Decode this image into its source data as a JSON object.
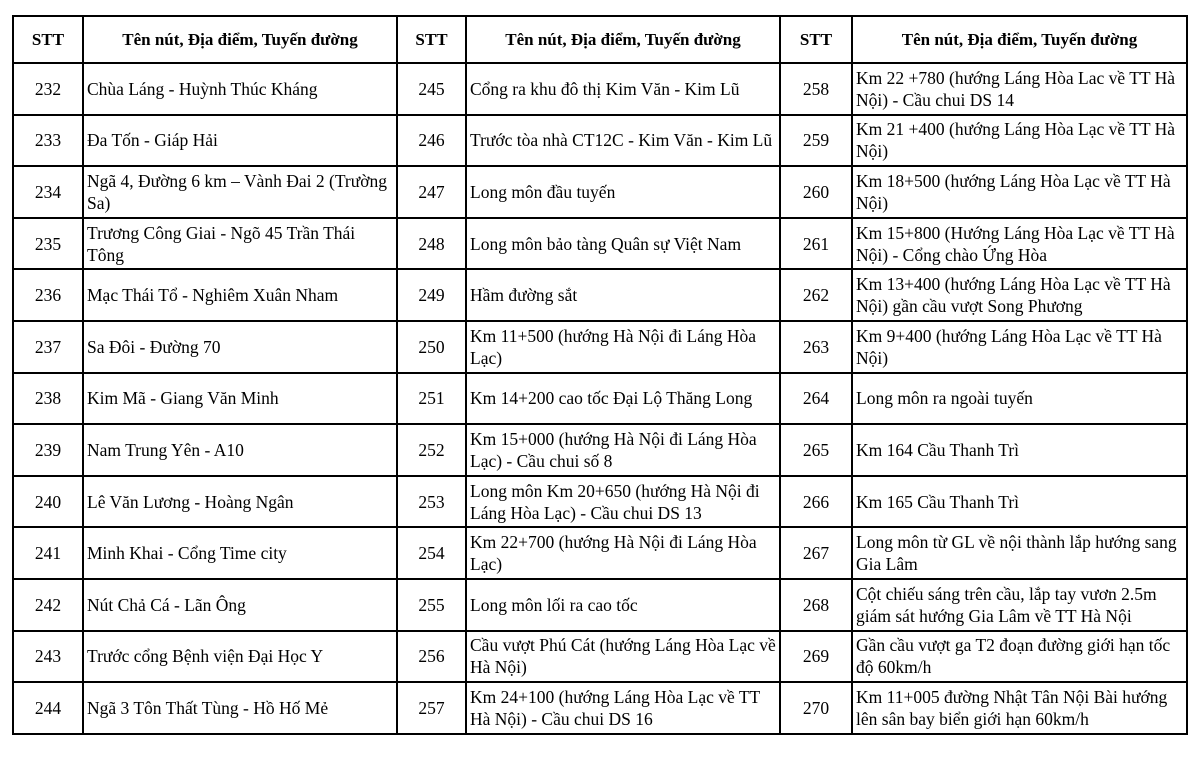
{
  "header": {
    "stt": "STT",
    "name": "Tên nút, Địa điểm, Tuyến đường"
  },
  "rows": [
    [
      [
        "232",
        "Chùa Láng - Huỳnh Thúc Kháng"
      ],
      [
        "245",
        "Cổng ra khu đô thị Kim Văn - Kim Lũ"
      ],
      [
        "258",
        "Km  22 +780  (hướng Láng Hòa Lac về TT Hà Nội) - Cầu chui DS 14"
      ]
    ],
    [
      [
        "233",
        "Đa Tốn - Giáp Hải"
      ],
      [
        "246",
        "Trước tòa nhà CT12C - Kim Văn - Kim Lũ"
      ],
      [
        "259",
        "Km 21 +400 (hướng Láng Hòa Lạc về TT Hà Nội)"
      ]
    ],
    [
      [
        "234",
        " Ngã 4, Đường 6 km – Vành Đai 2 (Trường Sa)"
      ],
      [
        "247",
        "Long môn đầu tuyến"
      ],
      [
        "260",
        "Km 18+500 (hướng Láng Hòa Lạc về TT Hà Nội)"
      ]
    ],
    [
      [
        "235",
        "Trương Công Giai - Ngõ 45 Trần Thái Tông"
      ],
      [
        "248",
        "Long môn bảo tàng Quân sự Việt Nam"
      ],
      [
        "261",
        "Km 15+800 (Hướng Láng Hòa Lạc về TT Hà Nội) - Cổng chào Ứng Hòa"
      ]
    ],
    [
      [
        "236",
        "Mạc Thái Tổ - Nghiêm Xuân Nham"
      ],
      [
        "249",
        "Hầm đường sắt"
      ],
      [
        "262",
        "Km 13+400 (hướng Láng Hòa Lạc về TT Hà Nội) gần cầu vượt Song Phương"
      ]
    ],
    [
      [
        "237",
        "Sa Đôi - Đường 70"
      ],
      [
        "250",
        "Km 11+500 (hướng Hà Nội đi Láng Hòa Lạc)"
      ],
      [
        "263",
        "Km 9+400 (hướng Láng Hòa Lạc về TT Hà Nội)"
      ]
    ],
    [
      [
        "238",
        "Kim Mã - Giang Văn Minh"
      ],
      [
        "251",
        "Km 14+200 cao tốc Đại Lộ Thăng Long"
      ],
      [
        "264",
        "Long môn ra ngoài tuyến"
      ]
    ],
    [
      [
        "239",
        "Nam Trung Yên - A10"
      ],
      [
        "252",
        "Km 15+000 (hướng Hà Nội đi Láng Hòa Lạc) - Cầu chui số 8"
      ],
      [
        "265",
        "Km 164 Cầu Thanh Trì"
      ]
    ],
    [
      [
        "240",
        "Lê Văn Lương - Hoàng Ngân"
      ],
      [
        "253",
        "Long môn Km 20+650  (hướng Hà Nội đi Láng Hòa Lạc) - Cầu chui DS 13"
      ],
      [
        "266",
        "Km 165 Cầu Thanh Trì"
      ]
    ],
    [
      [
        "241",
        "Minh Khai - Cổng Time city"
      ],
      [
        "254",
        "Km 22+700 (hướng Hà Nội đi Láng Hòa Lạc)"
      ],
      [
        "267",
        "Long môn từ GL về nội thành lắp hướng sang Gia Lâm"
      ]
    ],
    [
      [
        "242",
        "Nút Chả Cá - Lãn Ông"
      ],
      [
        "255",
        "Long môn lối ra cao tốc"
      ],
      [
        "268",
        "Cột chiếu sáng trên cầu, lắp tay vươn 2.5m giám sát hướng Gia Lâm về TT Hà Nội"
      ]
    ],
    [
      [
        "243",
        "Trước cổng Bệnh viện Đại Học Y"
      ],
      [
        "256",
        "Cầu vượt Phú Cát (hướng Láng Hòa Lạc về Hà Nội)"
      ],
      [
        "269",
        "Gần cầu vượt ga T2 đoạn đường giới hạn tốc độ 60km/h"
      ]
    ],
    [
      [
        "244",
        "Ngã 3 Tôn Thất Tùng - Hồ Hố Mẻ"
      ],
      [
        "257",
        "Km 24+100 (hướng Láng Hòa Lạc về TT Hà Nội) - Cầu chui DS 16"
      ],
      [
        "270",
        "Km 11+005 đường Nhật Tân Nội Bài hướng lên sân bay biển giới hạn 60km/h"
      ]
    ]
  ]
}
